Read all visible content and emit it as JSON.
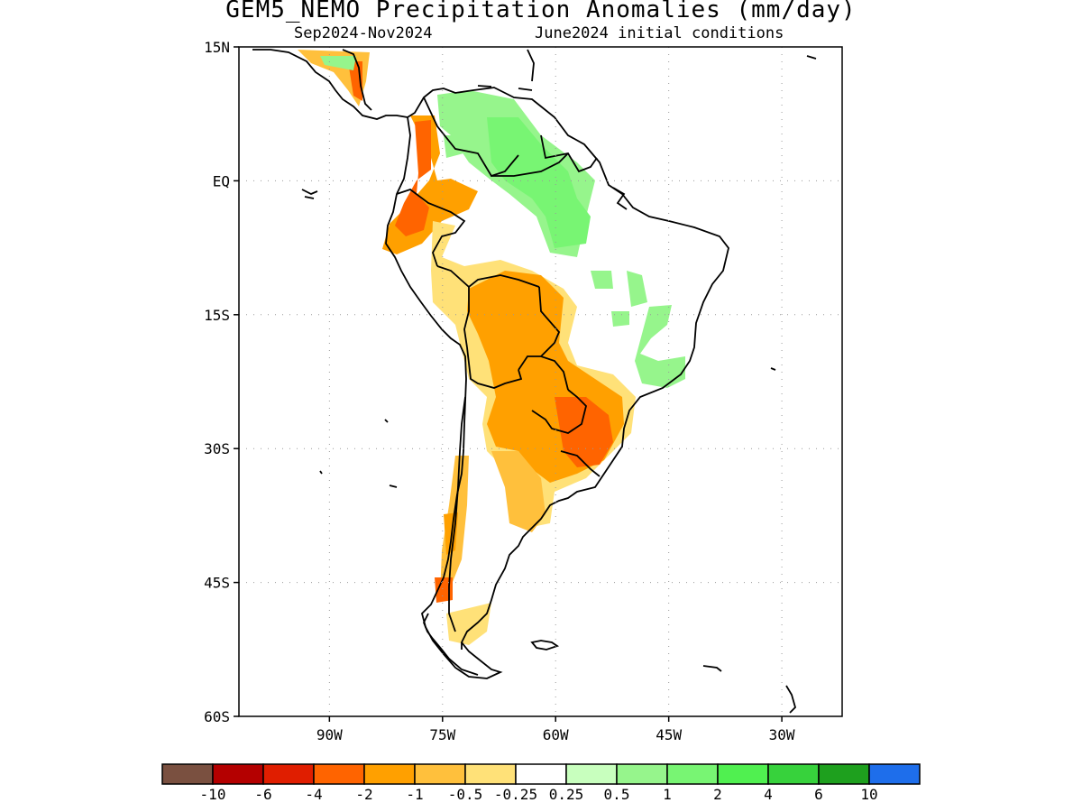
{
  "title": "GEM5_NEMO Precipitation Anomalies (mm/day)",
  "subtitle_left": "Sep2024-Nov2024",
  "subtitle_right": "June2024 initial conditions",
  "map": {
    "region": "South America",
    "lon_range": [
      -102,
      -22
    ],
    "lat_range": [
      -60,
      15
    ],
    "lon_ticks": [
      {
        "value": -90,
        "label": "90W"
      },
      {
        "value": -75,
        "label": "75W"
      },
      {
        "value": -60,
        "label": "60W"
      },
      {
        "value": -45,
        "label": "45W"
      },
      {
        "value": -30,
        "label": "30W"
      }
    ],
    "lat_ticks": [
      {
        "value": 15,
        "label": "15N"
      },
      {
        "value": 0,
        "label": "EQ"
      },
      {
        "value": -15,
        "label": "15S"
      },
      {
        "value": -30,
        "label": "30S"
      },
      {
        "value": -45,
        "label": "45S"
      },
      {
        "value": -60,
        "label": "60S"
      }
    ],
    "grid": "dotted"
  },
  "colorbar": {
    "colors": [
      "#7a5040",
      "#b40000",
      "#e01e00",
      "#ff6400",
      "#ffa000",
      "#ffc03c",
      "#ffe178",
      "#ffffff",
      "#c8ffbe",
      "#96f58c",
      "#78f573",
      "#50f050",
      "#37d23c",
      "#1ea01e",
      "#1e6eeb"
    ],
    "labels": [
      "-10",
      "-6",
      "-4",
      "-2",
      "-1",
      "-0.5",
      "-0.25",
      "0.25",
      "0.5",
      "1",
      "2",
      "4",
      "6",
      "10"
    ]
  },
  "anomaly_regions": [
    {
      "name": "central-america-dry",
      "level": "-2"
    },
    {
      "name": "colombia-andes-dry",
      "level": "-2"
    },
    {
      "name": "ecuador-peru-dry",
      "level": "-1"
    },
    {
      "name": "amazon-south-dry",
      "level": "-0.25"
    },
    {
      "name": "bolivia-mato-grosso-dry",
      "level": "-1"
    },
    {
      "name": "paraguay-south-brazil-dry",
      "level": "-1"
    },
    {
      "name": "south-brazil-core-dry",
      "level": "-2"
    },
    {
      "name": "argentina-north-dry",
      "level": "-1"
    },
    {
      "name": "chile-central-dry",
      "level": "-1"
    },
    {
      "name": "patagonia-south-dry",
      "level": "-0.25"
    },
    {
      "name": "venezuela-guyana-wet",
      "level": "0.5"
    },
    {
      "name": "north-brazil-wet",
      "level": "1"
    },
    {
      "name": "east-brazil-wet",
      "level": "0.5"
    }
  ]
}
